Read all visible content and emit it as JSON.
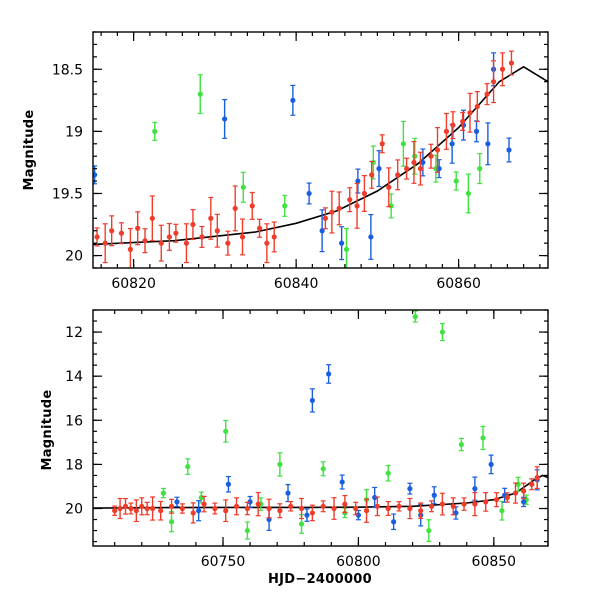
{
  "chart_data": [
    {
      "type": "scatter",
      "title": "",
      "xlabel": "",
      "ylabel": "Magnitude",
      "xlim": [
        60815,
        60871
      ],
      "ylim": [
        20.1,
        18.2
      ],
      "y_inverted": true,
      "grid": false,
      "x_ticks": [
        60820,
        60840,
        60860
      ],
      "y_ticks": [
        18.5,
        19,
        19.5,
        20
      ],
      "colors": {
        "red": "#f03c2a",
        "green": "#3fe23f",
        "blue": "#1a5ee0",
        "curve": "#000000"
      },
      "series": [
        {
          "color": "red",
          "x": [
            60815.5,
            60816.5,
            60817.3,
            60818.5,
            60819.6,
            60820.5,
            60821.4,
            60822.3,
            60823.4,
            60824.4,
            60825.2,
            60826.5,
            60827.3,
            60828.4,
            60829.5,
            60830.3,
            60831.6,
            60832.5,
            60833.4,
            60834.6,
            60835.5,
            60836.4,
            60837.3,
            60843.6,
            60844.4,
            60845.3,
            60846.6,
            60847.5,
            60848.4,
            60849.3,
            60850.6,
            60851.4,
            60852.5,
            60853.6,
            60854.5,
            60855.3,
            60856.6,
            60857.4,
            60858.5,
            60859.3,
            60860.5,
            60861.4,
            60862.3,
            60863.5,
            60864.3,
            60865.4,
            60866.5
          ],
          "y": [
            19.85,
            19.9,
            19.8,
            19.82,
            19.95,
            19.78,
            19.88,
            19.7,
            19.9,
            19.85,
            19.82,
            19.9,
            19.75,
            19.85,
            19.7,
            19.8,
            19.9,
            19.62,
            19.85,
            19.6,
            19.78,
            19.9,
            19.85,
            19.7,
            19.65,
            19.62,
            19.55,
            19.6,
            19.5,
            19.35,
            19.1,
            19.45,
            19.35,
            19.3,
            19.25,
            19.3,
            19.2,
            19.15,
            19.0,
            18.95,
            18.92,
            18.85,
            18.8,
            18.7,
            18.6,
            18.5,
            18.45
          ]
        },
        {
          "color": "green",
          "x": [
            60822.6,
            60828.2,
            60833.5,
            60838.6,
            60846.2,
            60849.5,
            60851.7,
            60853.2,
            60854.6,
            60857.2,
            60859.7,
            60861.2,
            60862.6
          ],
          "y": [
            19.0,
            18.7,
            19.45,
            19.6,
            19.95,
            19.25,
            19.6,
            19.1,
            19.2,
            19.3,
            19.4,
            19.5,
            19.3
          ]
        },
        {
          "color": "blue",
          "x": [
            60815.2,
            60831.2,
            60839.6,
            60841.6,
            60843.2,
            60845.6,
            60847.6,
            60849.2,
            60850.2,
            60855.6,
            60857.6,
            60859.2,
            60860.6,
            60862.2,
            60863.6,
            60864.3,
            60866.2
          ],
          "y": [
            19.35,
            18.9,
            18.75,
            19.5,
            19.8,
            19.9,
            19.4,
            19.85,
            19.3,
            19.25,
            19.3,
            19.1,
            18.95,
            19.0,
            19.1,
            18.5,
            19.15
          ]
        }
      ],
      "curve": {
        "x": [
          60815,
          60825,
          60835,
          60840,
          60845,
          60850,
          60855,
          60860,
          60865,
          60868,
          60871
        ],
        "y": [
          19.91,
          19.88,
          19.81,
          19.74,
          19.64,
          19.48,
          19.26,
          18.97,
          18.6,
          18.48,
          18.6
        ]
      }
    },
    {
      "type": "scatter",
      "title": "",
      "xlabel": "HJD−2400000",
      "ylabel": "Magnitude",
      "xlim": [
        60702,
        60870
      ],
      "ylim": [
        21.7,
        11.0
      ],
      "y_inverted": true,
      "grid": false,
      "x_ticks": [
        60750,
        60800,
        60850
      ],
      "y_ticks": [
        12,
        14,
        16,
        18,
        20
      ],
      "colors": {
        "red": "#f03c2a",
        "green": "#3fe23f",
        "blue": "#1a5ee0",
        "curve": "#000000"
      },
      "series": [
        {
          "color": "red",
          "x": [
            60710,
            60712,
            60714,
            60716,
            60718,
            60720,
            60722,
            60724,
            60727,
            60731,
            60735,
            60739,
            60743,
            60747,
            60751,
            60755,
            60759,
            60763,
            60767,
            60771,
            60775,
            60779,
            60783,
            60787,
            60791,
            60795,
            60799,
            60803,
            60807,
            60811,
            60815,
            60819,
            60823,
            60827,
            60831,
            60835,
            60839,
            60843,
            60847,
            60851,
            60855,
            60858,
            60861,
            60864,
            60866
          ],
          "y": [
            20.1,
            20.0,
            19.9,
            20.0,
            20.1,
            19.9,
            20.0,
            20.0,
            20.1,
            19.9,
            20.0,
            20.2,
            19.8,
            20.0,
            20.1,
            19.9,
            20.0,
            19.8,
            20.0,
            20.1,
            19.9,
            20.0,
            20.2,
            19.9,
            20.0,
            19.8,
            20.0,
            20.1,
            19.9,
            20.0,
            19.9,
            20.0,
            20.1,
            19.9,
            19.8,
            19.9,
            19.8,
            19.8,
            19.7,
            19.6,
            19.5,
            19.3,
            19.2,
            18.9,
            18.6
          ]
        },
        {
          "color": "green",
          "x": [
            60728,
            60731,
            60737,
            60742,
            60751,
            60759,
            60764,
            60771,
            60779,
            60787,
            60795,
            60803,
            60811,
            60821,
            60826,
            60831,
            60838,
            60846,
            60853,
            60859,
            60862
          ],
          "y": [
            19.3,
            20.6,
            18.1,
            19.5,
            16.5,
            21.0,
            19.8,
            18.0,
            20.7,
            18.2,
            20.2,
            19.6,
            18.4,
            11.3,
            21.0,
            12.0,
            17.1,
            16.8,
            20.1,
            18.9,
            19.6
          ]
        },
        {
          "color": "blue",
          "x": [
            60733,
            60741,
            60752,
            60760,
            60767,
            60774,
            60781,
            60783,
            60789,
            60794,
            60800,
            60806,
            60813,
            60819,
            60823,
            60828,
            60836,
            60843,
            60849,
            60854,
            60861,
            60866
          ],
          "y": [
            19.7,
            20.1,
            18.9,
            19.7,
            20.5,
            19.3,
            20.3,
            15.1,
            13.9,
            18.8,
            20.3,
            19.5,
            20.6,
            19.1,
            20.3,
            19.4,
            20.2,
            19.1,
            18.0,
            19.4,
            19.7,
            18.7
          ]
        }
      ],
      "curve": {
        "x": [
          60702,
          60730,
          60750,
          60780,
          60800,
          60820,
          60840,
          60850,
          60858,
          60865,
          60868,
          60870
        ],
        "y": [
          19.98,
          19.96,
          19.95,
          19.95,
          19.94,
          19.9,
          19.75,
          19.6,
          19.3,
          18.7,
          18.5,
          18.6
        ]
      }
    }
  ]
}
